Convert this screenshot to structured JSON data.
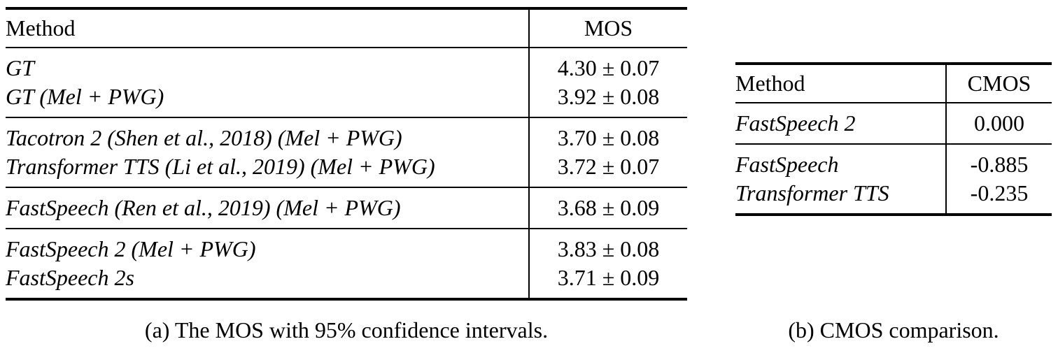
{
  "colors": {
    "text": "#000000",
    "background": "#ffffff",
    "rule": "#000000"
  },
  "table_a": {
    "caption": "(a) The MOS with 95% confidence intervals.",
    "header": {
      "method": "Method",
      "value": "MOS"
    },
    "groups": [
      {
        "rows": [
          {
            "method": "GT",
            "value": "4.30 ± 0.07"
          },
          {
            "method": "GT (Mel + PWG)",
            "value": "3.92 ± 0.08"
          }
        ]
      },
      {
        "rows": [
          {
            "method": "Tacotron 2 (Shen et al., 2018) (Mel + PWG)",
            "value": "3.70 ± 0.08"
          },
          {
            "method": "Transformer TTS (Li et al., 2019) (Mel + PWG)",
            "value": "3.72 ± 0.07"
          }
        ]
      },
      {
        "rows": [
          {
            "method": "FastSpeech (Ren et al., 2019) (Mel + PWG)",
            "value": "3.68 ± 0.09"
          }
        ]
      },
      {
        "rows": [
          {
            "method": "FastSpeech 2 (Mel + PWG)",
            "value": "3.83 ± 0.08"
          },
          {
            "method": "FastSpeech 2s",
            "value": "3.71 ± 0.09"
          }
        ]
      }
    ]
  },
  "table_b": {
    "caption": "(b) CMOS comparison.",
    "header": {
      "method": "Method",
      "value": "CMOS"
    },
    "groups": [
      {
        "rows": [
          {
            "method": "FastSpeech 2",
            "value": "0.000"
          }
        ]
      },
      {
        "rows": [
          {
            "method": "FastSpeech",
            "value": "-0.885"
          },
          {
            "method": "Transformer TTS",
            "value": "-0.235"
          }
        ]
      }
    ]
  }
}
